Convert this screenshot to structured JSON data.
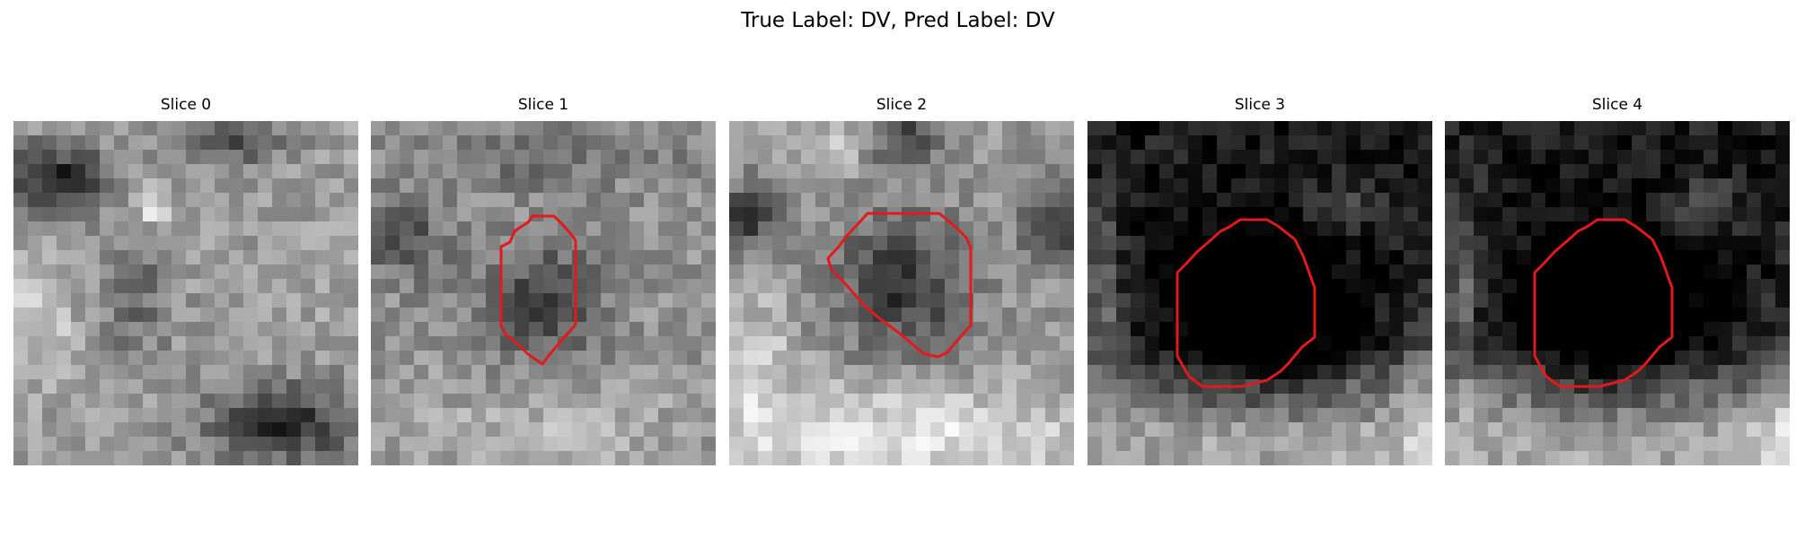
{
  "figure": {
    "title": "True Label: DV, Pred Label: DV"
  },
  "slices": [
    {
      "title": "Slice 0",
      "has_contour": false
    },
    {
      "title": "Slice 1",
      "has_contour": true
    },
    {
      "title": "Slice 2",
      "has_contour": true
    },
    {
      "title": "Slice 3",
      "has_contour": true
    },
    {
      "title": "Slice 4",
      "has_contour": true
    }
  ],
  "colors": {
    "contour": "#e31a1c",
    "background": "#ffffff"
  }
}
